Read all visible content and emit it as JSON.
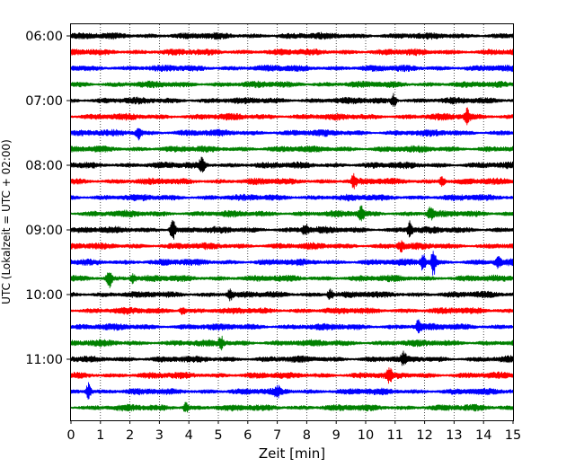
{
  "chart_data": {
    "type": "line",
    "xlabel": "Zeit  [min]",
    "ylabel": "UTC (Lokalzeit = UTC + 02:00)",
    "xlim": [
      0,
      15
    ],
    "x_ticks": [
      "0",
      "1",
      "2",
      "3",
      "4",
      "5",
      "6",
      "7",
      "8",
      "9",
      "10",
      "11",
      "12",
      "13",
      "14",
      "15"
    ],
    "x_grid": "dotted vertical lines at each minute",
    "y_tick_labels": [
      "06:00",
      "07:00",
      "08:00",
      "09:00",
      "10:00",
      "11:00"
    ],
    "trace_interval_minutes": 15,
    "trace_start": "06:00",
    "trace_count": 24,
    "trace_colors": [
      "#000000",
      "#ff0000",
      "#0000ff",
      "#008000"
    ],
    "events": [
      {
        "trace": 4,
        "minute": 10.95,
        "amp": 1.6
      },
      {
        "trace": 5,
        "minute": 13.45,
        "amp": 1.8
      },
      {
        "trace": 6,
        "minute": 2.3,
        "amp": 1.7
      },
      {
        "trace": 8,
        "minute": 4.45,
        "amp": 1.8
      },
      {
        "trace": 9,
        "minute": 9.6,
        "amp": 1.4
      },
      {
        "trace": 9,
        "minute": 12.6,
        "amp": 1.3
      },
      {
        "trace": 11,
        "minute": 9.85,
        "amp": 1.7
      },
      {
        "trace": 11,
        "minute": 12.2,
        "amp": 1.4
      },
      {
        "trace": 12,
        "minute": 3.45,
        "amp": 2.6
      },
      {
        "trace": 12,
        "minute": 7.95,
        "amp": 1.6
      },
      {
        "trace": 12,
        "minute": 11.5,
        "amp": 2.0
      },
      {
        "trace": 13,
        "minute": 11.2,
        "amp": 1.2
      },
      {
        "trace": 14,
        "minute": 11.95,
        "amp": 2.0
      },
      {
        "trace": 14,
        "minute": 12.3,
        "amp": 3.2
      },
      {
        "trace": 14,
        "minute": 14.5,
        "amp": 1.3
      },
      {
        "trace": 15,
        "minute": 1.3,
        "amp": 2.2
      },
      {
        "trace": 15,
        "minute": 2.1,
        "amp": 1.2
      },
      {
        "trace": 16,
        "minute": 5.4,
        "amp": 1.2
      },
      {
        "trace": 16,
        "minute": 8.8,
        "amp": 1.3
      },
      {
        "trace": 17,
        "minute": 3.8,
        "amp": 1.2
      },
      {
        "trace": 18,
        "minute": 11.8,
        "amp": 1.7
      },
      {
        "trace": 19,
        "minute": 5.1,
        "amp": 1.6
      },
      {
        "trace": 20,
        "minute": 11.3,
        "amp": 1.3
      },
      {
        "trace": 21,
        "minute": 10.8,
        "amp": 1.3
      },
      {
        "trace": 22,
        "minute": 0.6,
        "amp": 2.2
      },
      {
        "trace": 22,
        "minute": 7.0,
        "amp": 1.3
      },
      {
        "trace": 23,
        "minute": 3.9,
        "amp": 1.2
      }
    ]
  }
}
